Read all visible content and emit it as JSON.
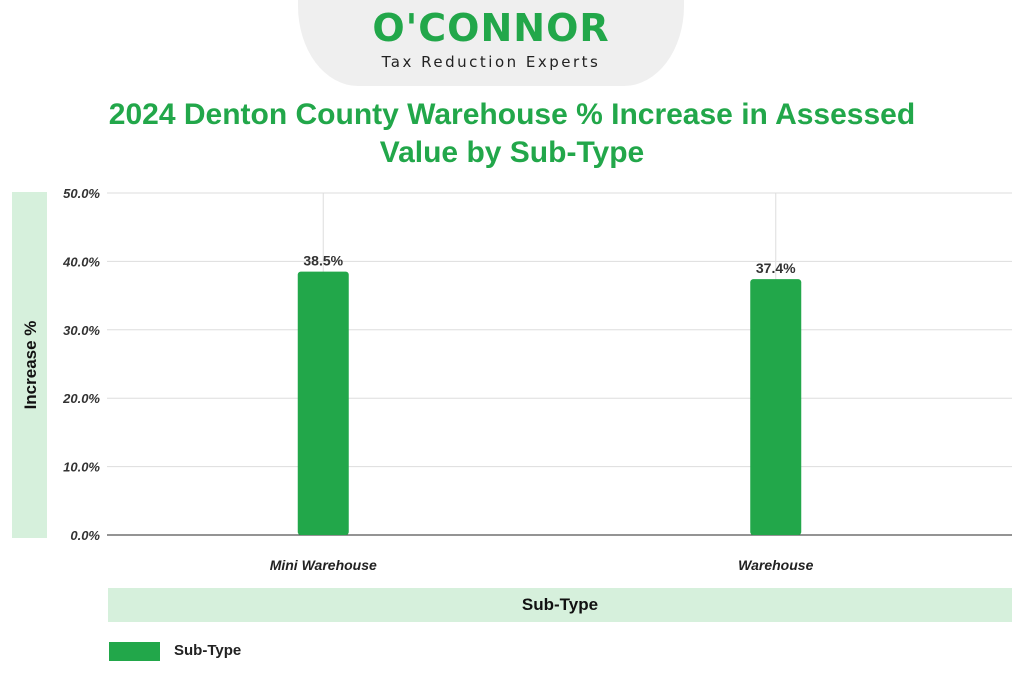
{
  "logo": {
    "name": "O'CONNOR",
    "tagline": "Tax Reduction Experts"
  },
  "chart_data": {
    "type": "bar",
    "title": "2024 Denton County Warehouse % Increase in Assessed Value by Sub-Type",
    "categories": [
      "Mini Warehouse",
      "Warehouse"
    ],
    "series": [
      {
        "name": "Sub-Type",
        "values": [
          38.5,
          37.4
        ]
      }
    ],
    "data_labels": [
      "38.5%",
      "37.4%"
    ],
    "xlabel": "Sub-Type",
    "ylabel": "Increase %",
    "ylim": [
      0,
      50
    ],
    "yticks": [
      0,
      10,
      20,
      30,
      40,
      50
    ],
    "ytick_labels": [
      "0.0%",
      "10.0%",
      "20.0%",
      "30.0%",
      "40.0%",
      "50.0%"
    ],
    "grid": true,
    "legend_position": "bottom-left",
    "bar_color": "#22a74a"
  }
}
